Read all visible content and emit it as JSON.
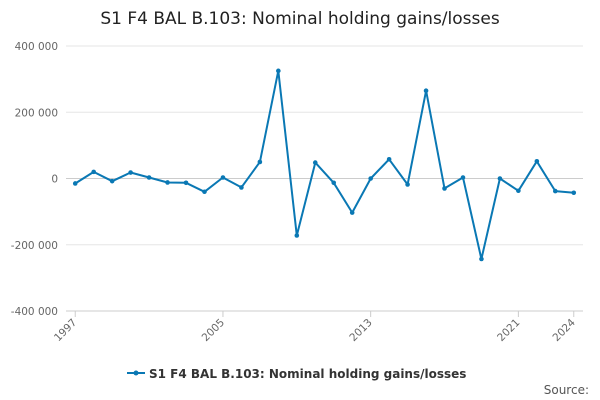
{
  "chart_data": {
    "type": "line",
    "title": "S1 F4 BAL B.103: Nominal holding gains/losses",
    "xlabel": "",
    "ylabel": "",
    "x": [
      1997,
      1998,
      1999,
      2000,
      2001,
      2002,
      2003,
      2004,
      2005,
      2006,
      2007,
      2008,
      2009,
      2010,
      2011,
      2012,
      2013,
      2014,
      2015,
      2016,
      2017,
      2018,
      2019,
      2020,
      2021,
      2022,
      2023,
      2024
    ],
    "series": [
      {
        "name": "S1 F4 BAL B.103: Nominal holding gains/losses",
        "color": "#0a78b4",
        "values": [
          -15000,
          20000,
          -8000,
          18000,
          3000,
          -12000,
          -13000,
          -40000,
          3000,
          -27000,
          50000,
          325000,
          -172000,
          48000,
          -13000,
          -103000,
          0,
          58000,
          -18000,
          265000,
          -30000,
          3000,
          -243000,
          0,
          -37000,
          52000,
          -38000,
          -43000
        ]
      }
    ],
    "ylim": [
      -400000,
      400000
    ],
    "yticks": [
      400000,
      200000,
      0,
      -200000,
      -400000
    ],
    "ytick_labels": [
      "400 000",
      "200 000",
      "0",
      "-200 000",
      "-400 000"
    ],
    "xticks": [
      1997,
      2005,
      2013,
      2021,
      2024
    ],
    "xtick_labels": [
      "1997",
      "2005",
      "2013",
      "2021",
      "2024"
    ],
    "grid": true,
    "legend_position": "bottom-center"
  },
  "source_label": "Source:"
}
